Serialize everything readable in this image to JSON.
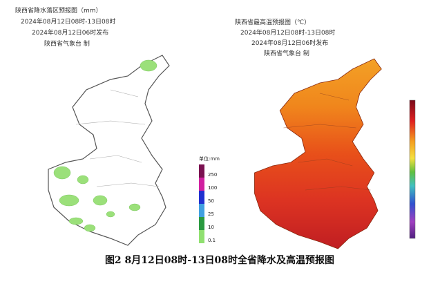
{
  "left_map": {
    "title": "陕西省降水落区预报图（mm）",
    "period": "2024年08月12日08时-13日08时",
    "issued": "2024年08月12日06时发布",
    "source": "陕西省气象台 制",
    "legend": {
      "unit": "单位:mm",
      "labels": [
        "250",
        "100",
        "50",
        "25",
        "10",
        "0.1"
      ]
    }
  },
  "right_map": {
    "title": "陕西省最高温预报图（℃）",
    "period": "2024年08月12日08时-13日08时",
    "issued": "2024年08月12日06时发布",
    "source": "陕西省气象台 制"
  },
  "caption": "图2  8月12日08时-13日08时全省降水及高温预报图"
}
